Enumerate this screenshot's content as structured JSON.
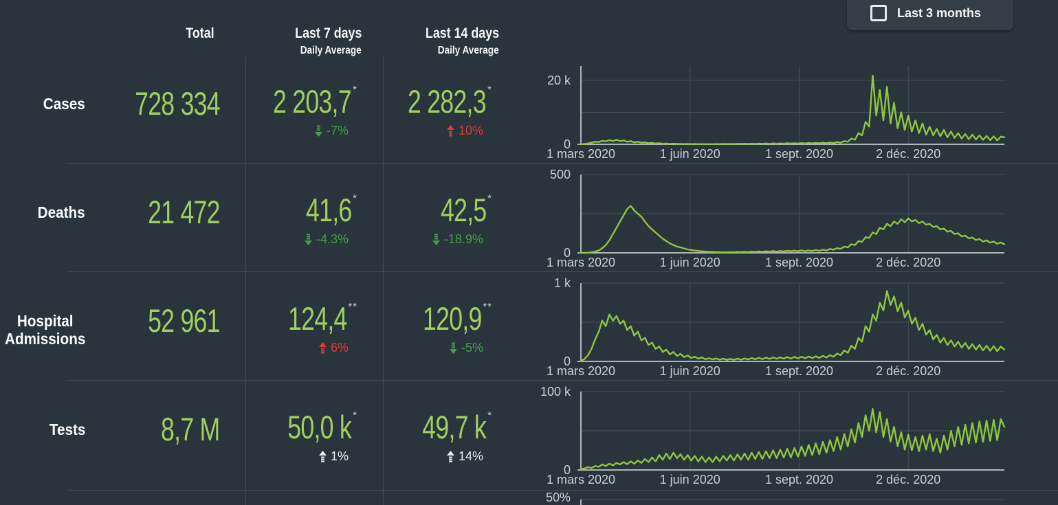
{
  "colors": {
    "background": "#2a343c",
    "accent_green_values": "#9fcf60",
    "chart_line_green": "#8dc63f",
    "trend_good_green": "#43a047",
    "trend_bad_red": "#dd3b33",
    "trend_neutral": "#e8ecee"
  },
  "controls": {
    "last_3_months": {
      "label": "Last 3 months",
      "checked": false
    }
  },
  "table": {
    "headers": {
      "total": "Total",
      "last7": "Last 7 days",
      "last14": "Last 14 days",
      "daily_average": "Daily Average"
    },
    "rows": [
      {
        "label": "Cases",
        "total": "728 334",
        "last7": {
          "value": "2 203,7",
          "note": "*",
          "change": "-7%",
          "direction": "down",
          "tone": "good"
        },
        "last14": {
          "value": "2 282,3",
          "note": "*",
          "change": "10%",
          "direction": "up",
          "tone": "bad"
        }
      },
      {
        "label": "Deaths",
        "total": "21 472",
        "last7": {
          "value": "41,6",
          "note": "*",
          "change": "-4.3%",
          "direction": "down",
          "tone": "good"
        },
        "last14": {
          "value": "42,5",
          "note": "*",
          "change": "-18.9%",
          "direction": "down",
          "tone": "good"
        }
      },
      {
        "label": "Hospital Admissions",
        "total": "52 961",
        "last7": {
          "value": "124,4",
          "note": "**",
          "change": "6%",
          "direction": "up",
          "tone": "bad"
        },
        "last14": {
          "value": "120,9",
          "note": "**",
          "change": "-5%",
          "direction": "down",
          "tone": "good"
        }
      },
      {
        "label": "Tests",
        "total": "8,7 M",
        "last7": {
          "value": "50,0 k",
          "note": "*",
          "change": "1%",
          "direction": "up",
          "tone": "neutral"
        },
        "last14": {
          "value": "49,7 k",
          "note": "*",
          "change": "14%",
          "direction": "up",
          "tone": "neutral"
        }
      }
    ]
  },
  "partial_chart": {
    "y_label": "50%"
  },
  "chart_data": [
    {
      "name": "cases-daily",
      "type": "line",
      "title": "Cases",
      "x_domain_days": [
        0,
        357
      ],
      "sample_step_days": 3,
      "x_ticks": [
        {
          "label": "1 mars 2020",
          "day": 0
        },
        {
          "label": "1 juin 2020",
          "day": 92
        },
        {
          "label": "1 sept. 2020",
          "day": 184
        },
        {
          "label": "2 déc. 2020",
          "day": 276
        }
      ],
      "ylim": [
        0,
        24500
      ],
      "y_axis_labels": [
        {
          "label": "20 k",
          "value": 20000
        },
        {
          "label": "0",
          "value": 0
        }
      ],
      "gridlines_y": [
        10000,
        20000
      ],
      "values": [
        30,
        100,
        250,
        500,
        800,
        700,
        1100,
        900,
        1300,
        1000,
        1400,
        1000,
        1200,
        800,
        1000,
        600,
        800,
        500,
        600,
        350,
        450,
        250,
        350,
        180,
        250,
        120,
        200,
        100,
        150,
        80,
        120,
        60,
        100,
        50,
        80,
        40,
        70,
        50,
        90,
        60,
        100,
        80,
        130,
        90,
        150,
        100,
        180,
        110,
        200,
        130,
        220,
        150,
        250,
        160,
        270,
        180,
        290,
        200,
        320,
        210,
        350,
        230,
        380,
        250,
        420,
        280,
        450,
        320,
        500,
        350,
        550,
        400,
        700,
        500,
        1000,
        800,
        1800,
        1400,
        3500,
        2800,
        7000,
        5500,
        21500,
        9000,
        17000,
        7500,
        18000,
        6500,
        13000,
        5000,
        10000,
        4500,
        9000,
        4000,
        7500,
        3500,
        6500,
        3000,
        5500,
        2800,
        4800,
        2500,
        4500,
        2200,
        4000,
        2000,
        3500,
        1800,
        3200,
        1600,
        3000,
        1500,
        2800,
        1400,
        2600,
        1300,
        2500,
        1200,
        2400,
        2200
      ]
    },
    {
      "name": "deaths-daily",
      "type": "line",
      "title": "Deaths",
      "x_domain_days": [
        0,
        357
      ],
      "sample_step_days": 3,
      "x_ticks": [
        {
          "label": "1 mars 2020",
          "day": 0
        },
        {
          "label": "1 juin 2020",
          "day": 92
        },
        {
          "label": "1 sept. 2020",
          "day": 184
        },
        {
          "label": "2 déc. 2020",
          "day": 276
        }
      ],
      "ylim": [
        0,
        500
      ],
      "y_axis_labels": [
        {
          "label": "500",
          "value": 500
        },
        {
          "label": "0",
          "value": 0
        }
      ],
      "gridlines_y": [
        250,
        500
      ],
      "values": [
        0,
        0,
        1,
        3,
        8,
        15,
        30,
        50,
        80,
        120,
        160,
        200,
        240,
        280,
        300,
        270,
        250,
        230,
        200,
        170,
        150,
        130,
        110,
        90,
        75,
        60,
        50,
        40,
        35,
        28,
        22,
        18,
        15,
        12,
        10,
        8,
        7,
        6,
        5,
        5,
        4,
        4,
        5,
        4,
        6,
        5,
        7,
        5,
        8,
        6,
        9,
        7,
        10,
        8,
        11,
        8,
        12,
        9,
        13,
        10,
        14,
        10,
        15,
        11,
        16,
        12,
        18,
        13,
        20,
        15,
        25,
        20,
        30,
        25,
        40,
        35,
        55,
        50,
        75,
        70,
        100,
        95,
        130,
        120,
        160,
        150,
        185,
        170,
        200,
        185,
        215,
        195,
        220,
        200,
        210,
        190,
        200,
        180,
        185,
        165,
        170,
        150,
        155,
        135,
        140,
        120,
        125,
        105,
        110,
        92,
        98,
        82,
        88,
        72,
        80,
        65,
        72,
        58,
        66,
        55
      ]
    },
    {
      "name": "hospital-admissions-daily",
      "type": "line",
      "title": "Hospital Admissions",
      "x_domain_days": [
        0,
        357
      ],
      "sample_step_days": 3,
      "x_ticks": [
        {
          "label": "1 mars 2020",
          "day": 0
        },
        {
          "label": "1 juin 2020",
          "day": 92
        },
        {
          "label": "1 sept. 2020",
          "day": 184
        },
        {
          "label": "2 déc. 2020",
          "day": 276
        }
      ],
      "ylim": [
        0,
        1000
      ],
      "y_axis_labels": [
        {
          "label": "1 k",
          "value": 1000
        },
        {
          "label": "0",
          "value": 0
        }
      ],
      "gridlines_y": [
        500,
        1000
      ],
      "values": [
        10,
        30,
        80,
        160,
        280,
        380,
        520,
        450,
        600,
        520,
        580,
        480,
        520,
        400,
        450,
        330,
        380,
        270,
        300,
        210,
        240,
        160,
        190,
        120,
        150,
        90,
        120,
        70,
        95,
        55,
        75,
        45,
        60,
        35,
        50,
        28,
        40,
        25,
        38,
        22,
        35,
        20,
        32,
        20,
        35,
        22,
        38,
        25,
        42,
        28,
        45,
        30,
        48,
        32,
        50,
        34,
        52,
        35,
        55,
        36,
        58,
        38,
        60,
        40,
        62,
        42,
        65,
        45,
        70,
        50,
        80,
        60,
        100,
        80,
        140,
        110,
        200,
        160,
        300,
        250,
        450,
        380,
        600,
        520,
        750,
        650,
        900,
        720,
        830,
        640,
        750,
        560,
        650,
        480,
        560,
        400,
        480,
        340,
        400,
        280,
        340,
        240,
        300,
        210,
        270,
        190,
        250,
        175,
        235,
        160,
        220,
        150,
        210,
        140,
        200,
        135,
        195,
        130,
        190,
        150
      ]
    },
    {
      "name": "tests-daily",
      "type": "line",
      "title": "Tests",
      "x_domain_days": [
        0,
        357
      ],
      "sample_step_days": 3,
      "x_ticks": [
        {
          "label": "1 mars 2020",
          "day": 0
        },
        {
          "label": "1 juin 2020",
          "day": 92
        },
        {
          "label": "1 sept. 2020",
          "day": 184
        },
        {
          "label": "2 déc. 2020",
          "day": 276
        }
      ],
      "ylim": [
        0,
        100000
      ],
      "y_axis_labels": [
        {
          "label": "100 k",
          "value": 100000
        },
        {
          "label": "0",
          "value": 0
        }
      ],
      "gridlines_y": [
        50000,
        100000
      ],
      "values": [
        1000,
        2000,
        3500,
        2500,
        5000,
        4000,
        7000,
        5000,
        8000,
        6000,
        9000,
        7000,
        10000,
        7500,
        11000,
        8000,
        12000,
        9000,
        14000,
        10000,
        16000,
        11000,
        19000,
        13000,
        21000,
        14000,
        22000,
        15000,
        20000,
        13000,
        19000,
        12000,
        18000,
        11000,
        17000,
        10000,
        16000,
        10000,
        17000,
        11000,
        18000,
        12000,
        19000,
        12000,
        20000,
        13000,
        21000,
        13000,
        22000,
        14000,
        23000,
        14000,
        24000,
        15000,
        25000,
        15000,
        26000,
        16000,
        27000,
        16000,
        28000,
        17000,
        30000,
        18000,
        32000,
        19000,
        34000,
        20000,
        36000,
        22000,
        38000,
        24000,
        42000,
        26000,
        46000,
        30000,
        52000,
        35000,
        60000,
        42000,
        70000,
        50000,
        78000,
        48000,
        74000,
        42000,
        65000,
        36000,
        55000,
        30000,
        48000,
        26000,
        45000,
        25000,
        42000,
        24000,
        44000,
        26000,
        46000,
        24000,
        40000,
        22000,
        44000,
        26000,
        50000,
        30000,
        55000,
        32000,
        58000,
        34000,
        60000,
        35000,
        62000,
        36000,
        63000,
        37000,
        64000,
        38000,
        65000,
        55000
      ]
    }
  ]
}
